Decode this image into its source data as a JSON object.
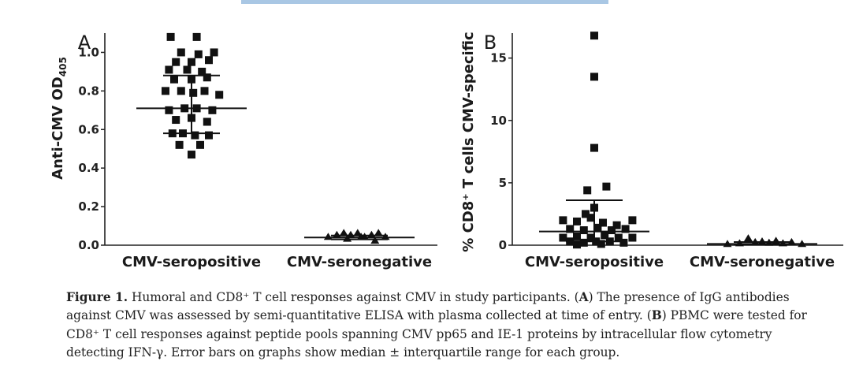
{
  "chart_data": [
    {
      "type": "scatter",
      "panel_label": "A",
      "ylabel": "Anti-CMV OD",
      "ylabel_sub": "405",
      "categories": [
        "CMV-seropositive",
        "CMV-seronegative"
      ],
      "yticks": [
        "0.0",
        "0.2",
        "0.4",
        "0.6",
        "0.8",
        "1.0"
      ],
      "ytick_values": [
        0.0,
        0.2,
        0.4,
        0.6,
        0.8,
        1.0
      ],
      "ylim": [
        0,
        1.1
      ],
      "grid": false,
      "series": [
        {
          "marker": "square",
          "category": "CMV-seropositive",
          "x": [
            -0.24,
            0.06,
            -0.12,
            0.08,
            0.26,
            -0.18,
            0.0,
            0.2,
            -0.26,
            -0.05,
            0.12,
            -0.2,
            0.0,
            0.18,
            -0.3,
            -0.12,
            0.02,
            0.15,
            0.32,
            -0.26,
            -0.08,
            0.06,
            0.24,
            -0.18,
            0.0,
            0.18,
            -0.22,
            -0.1,
            0.04,
            0.2,
            -0.14,
            0.1,
            0.0
          ],
          "y": [
            1.08,
            1.08,
            1.0,
            0.99,
            1.0,
            0.95,
            0.95,
            0.96,
            0.91,
            0.91,
            0.9,
            0.86,
            0.86,
            0.87,
            0.8,
            0.8,
            0.79,
            0.8,
            0.78,
            0.7,
            0.71,
            0.71,
            0.7,
            0.65,
            0.66,
            0.64,
            0.58,
            0.58,
            0.57,
            0.57,
            0.52,
            0.52,
            0.47
          ]
        },
        {
          "marker": "triangle",
          "category": "CMV-seronegative",
          "x": [
            -0.36,
            -0.26,
            -0.18,
            -0.1,
            -0.02,
            0.06,
            0.14,
            0.22,
            0.3,
            -0.14,
            0.02,
            0.18
          ],
          "y": [
            0.04,
            0.05,
            0.06,
            0.05,
            0.06,
            0.04,
            0.05,
            0.06,
            0.04,
            0.03,
            0.04,
            0.02
          ]
        }
      ],
      "median": [
        0.71,
        0.04
      ],
      "q1": [
        0.58,
        0.03
      ],
      "q3": [
        0.88,
        0.05
      ]
    },
    {
      "type": "scatter",
      "panel_label": "B",
      "ylabel": "% CD8⁺ T cells CMV-specific",
      "categories": [
        "CMV-seropositive",
        "CMV-seronegative"
      ],
      "yticks": [
        "0",
        "5",
        "10",
        "15"
      ],
      "ytick_values": [
        0,
        5,
        10,
        15
      ],
      "ylim": [
        0,
        17
      ],
      "grid": false,
      "series": [
        {
          "marker": "square",
          "category": "CMV-seropositive",
          "x": [
            0.0,
            0.0,
            0.0,
            -0.08,
            0.14,
            -0.36,
            -0.2,
            -0.04,
            0.1,
            0.26,
            0.44,
            -0.28,
            -0.12,
            0.04,
            0.2,
            0.36,
            -0.36,
            -0.2,
            -0.04,
            0.12,
            0.28,
            0.44,
            -0.28,
            -0.12,
            0.02,
            0.18,
            0.34,
            -0.2,
            0.08,
            0.0,
            -0.1
          ],
          "y": [
            16.8,
            13.5,
            7.8,
            4.4,
            4.7,
            2.0,
            1.9,
            2.2,
            1.8,
            1.6,
            2.0,
            1.3,
            1.2,
            1.4,
            1.2,
            1.3,
            0.6,
            0.7,
            0.6,
            0.8,
            0.6,
            0.6,
            0.3,
            0.2,
            0.3,
            0.3,
            0.2,
            0.05,
            0.1,
            3.0,
            2.5
          ]
        },
        {
          "marker": "triangle",
          "category": "CMV-seronegative",
          "x": [
            -0.4,
            -0.26,
            -0.16,
            -0.08,
            0.0,
            0.08,
            0.16,
            0.24,
            0.34,
            0.46
          ],
          "y": [
            0.05,
            0.1,
            0.5,
            0.2,
            0.25,
            0.15,
            0.3,
            0.1,
            0.2,
            0.05
          ]
        }
      ],
      "median": [
        1.1,
        0.1
      ],
      "q1": [
        0.3,
        0.05
      ],
      "q3": [
        3.6,
        0.25
      ]
    }
  ],
  "caption": {
    "label": "Figure 1.",
    "intro": "Humoral and CD8⁺ T cell responses against CMV in study participants. (",
    "A_label": "A",
    "A_text": ") The presence of IgG antibodies against CMV was assessed by semi-quantitative ELISA with plasma collected at time of entry. (",
    "B_label": "B",
    "B_text": ") PBMC were tested for CD8⁺ T cell responses against peptide pools spanning CMV pp65 and IE-1 proteins by intracellular flow cytometry detecting IFN-γ. Error bars on graphs show median ± interquartile range for each group."
  },
  "colors": {
    "marker": "#111111",
    "axis": "#222222",
    "topbar": "#a9c7e4"
  }
}
